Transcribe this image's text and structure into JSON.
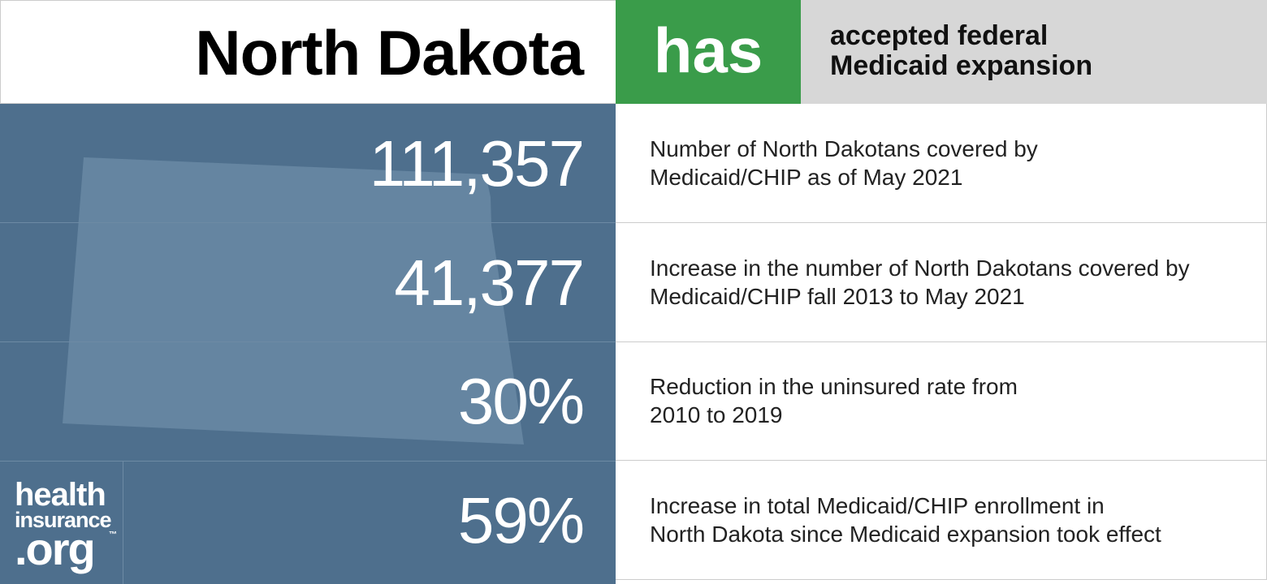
{
  "header": {
    "state": "North Dakota",
    "status": "has",
    "description": [
      "accepted federal",
      "Medicaid expansion"
    ]
  },
  "rows": [
    {
      "stat": "111,357",
      "description": [
        "Number of North Dakotans covered by",
        "Medicaid/CHIP as of May 2021"
      ]
    },
    {
      "stat": "41,377",
      "description": [
        "Increase in the number of North Dakotans covered by",
        "Medicaid/CHIP fall 2013 to May 2021"
      ]
    },
    {
      "stat": "30%",
      "description": [
        "Reduction in the uninsured rate from",
        "2010 to 2019"
      ]
    },
    {
      "stat": "59%",
      "description": [
        "Increase in total Medicaid/CHIP enrollment in",
        "North Dakota since Medicaid expansion took effect"
      ]
    }
  ],
  "logo": {
    "line1": "health",
    "line2": "insurance",
    "line3": ".org",
    "mark": "™"
  }
}
